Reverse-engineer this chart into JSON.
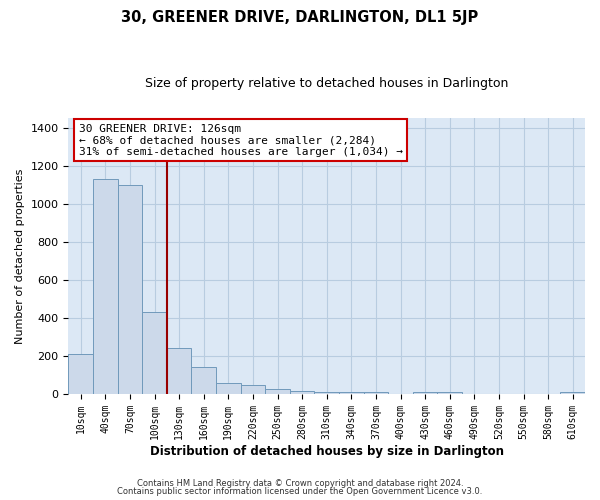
{
  "title": "30, GREENER DRIVE, DARLINGTON, DL1 5JP",
  "subtitle": "Size of property relative to detached houses in Darlington",
  "xlabel": "Distribution of detached houses by size in Darlington",
  "ylabel": "Number of detached properties",
  "bar_labels": [
    "10sqm",
    "40sqm",
    "70sqm",
    "100sqm",
    "130sqm",
    "160sqm",
    "190sqm",
    "220sqm",
    "250sqm",
    "280sqm",
    "310sqm",
    "340sqm",
    "370sqm",
    "400sqm",
    "430sqm",
    "460sqm",
    "490sqm",
    "520sqm",
    "550sqm",
    "580sqm",
    "610sqm"
  ],
  "bar_values": [
    210,
    1130,
    1100,
    430,
    240,
    140,
    60,
    48,
    25,
    18,
    12,
    8,
    8,
    0,
    8,
    8,
    0,
    0,
    0,
    0,
    8
  ],
  "bar_color": "#ccd9ea",
  "bar_edge_color": "#7099bb",
  "vline_x": 4,
  "vline_color": "#990000",
  "annotation_title": "30 GREENER DRIVE: 126sqm",
  "annotation_line1": "← 68% of detached houses are smaller (2,284)",
  "annotation_line2": "31% of semi-detached houses are larger (1,034) →",
  "annotation_box_color": "#ffffff",
  "annotation_box_edge": "#cc0000",
  "ylim": [
    0,
    1450
  ],
  "yticks": [
    0,
    200,
    400,
    600,
    800,
    1000,
    1200,
    1400
  ],
  "bg_color": "#ffffff",
  "plot_bg_color": "#dce8f5",
  "grid_color": "#b8cce0",
  "footer1": "Contains HM Land Registry data © Crown copyright and database right 2024.",
  "footer2": "Contains public sector information licensed under the Open Government Licence v3.0."
}
